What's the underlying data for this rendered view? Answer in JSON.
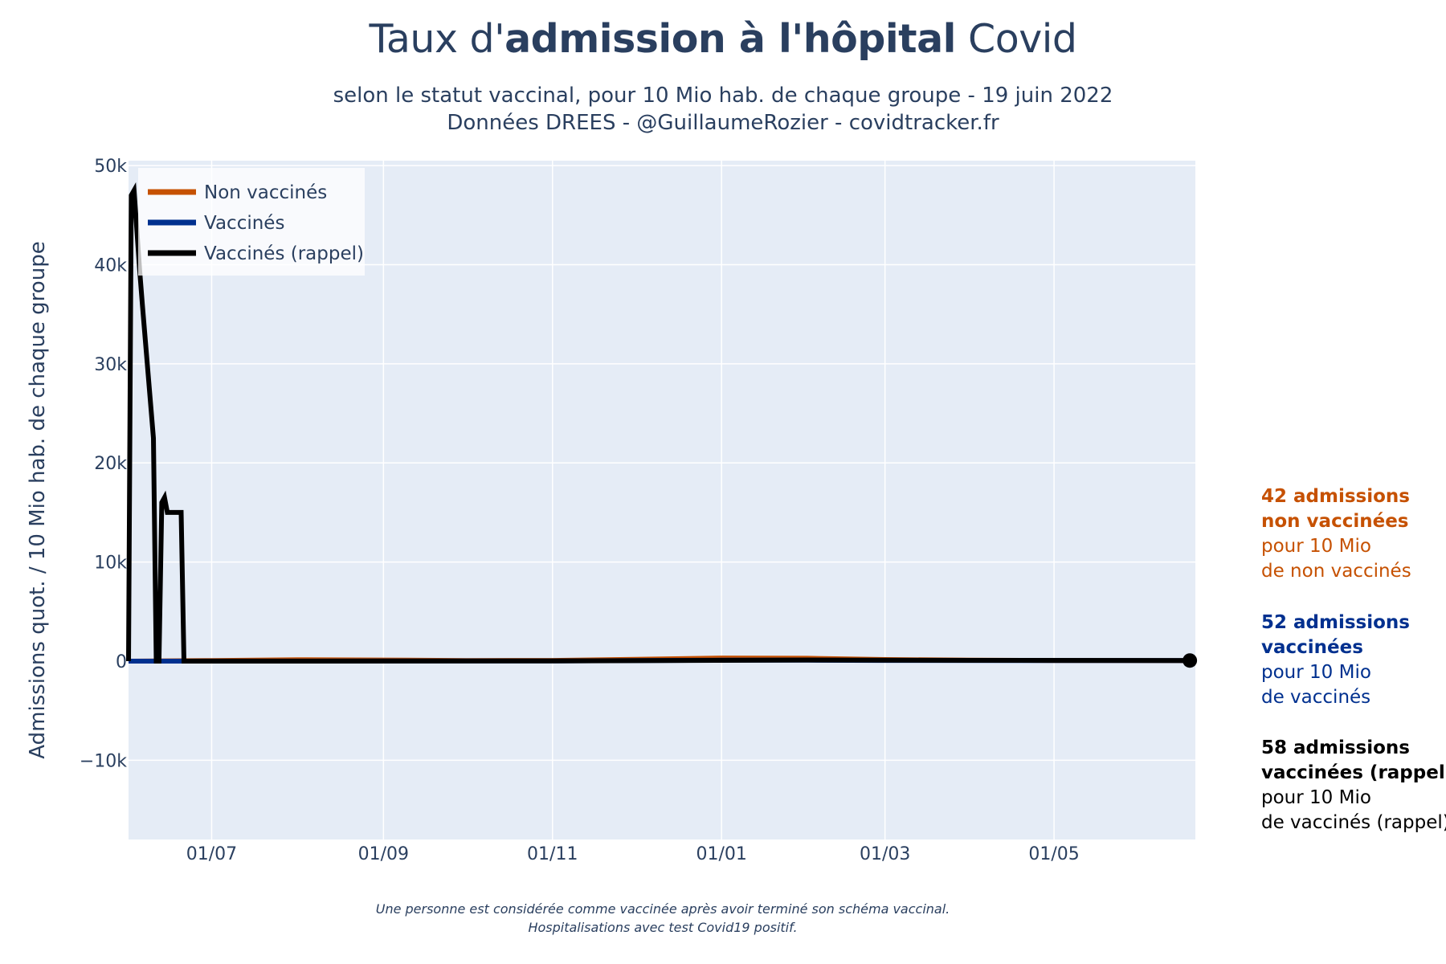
{
  "title": {
    "prefix": "Taux d'",
    "bold": "admission à l'hôpital",
    "suffix": " Covid"
  },
  "subtitle": {
    "line1": "selon le statut vaccinal, pour 10 Mio hab. de chaque groupe - 19 juin 2022",
    "line2": "Données DREES - @GuillaumeRozier - covidtracker.fr"
  },
  "footnote": {
    "line1": "Une personne est considérée comme vaccinée après avoir terminé son schéma vaccinal.",
    "line2": "Hospitalisations avec test Covid19 positif."
  },
  "annotations": [
    {
      "line1": "42 admissions",
      "line2": "non vaccinées",
      "line3": "pour 10 Mio",
      "line4": "de non vaccinés",
      "color": "#C65102"
    },
    {
      "line1": "52 admissions",
      "line2": "vaccinées",
      "line3": "pour 10 Mio",
      "line4": "de vaccinés",
      "color": "#00308F"
    },
    {
      "line1": "58 admissions",
      "line2": "vaccinées (rappel)",
      "line3": "pour 10 Mio",
      "line4": "de vaccinés (rappel)",
      "color": "#000000"
    }
  ],
  "chart_data": {
    "type": "line",
    "title": "",
    "xlabel": "",
    "ylabel": "Admissions quot. / 10 Mio hab. de chaque groupe",
    "x_axis": {
      "type": "date",
      "range": [
        "2021-06-01",
        "2022-06-21"
      ],
      "ticks": [
        {
          "date": "2021-07-01",
          "label": "01/07"
        },
        {
          "date": "2021-09-01",
          "label": "01/09"
        },
        {
          "date": "2021-11-01",
          "label": "01/11"
        },
        {
          "date": "2022-01-01",
          "label": "01/01"
        },
        {
          "date": "2022-03-01",
          "label": "01/03"
        },
        {
          "date": "2022-05-01",
          "label": "01/05"
        }
      ]
    },
    "y_axis": {
      "range": [
        -18000,
        50500
      ],
      "ticks": [
        {
          "value": -10000,
          "label": "−10k"
        },
        {
          "value": 0,
          "label": "0"
        },
        {
          "value": 10000,
          "label": "10k"
        },
        {
          "value": 20000,
          "label": "20k"
        },
        {
          "value": 30000,
          "label": "30k"
        },
        {
          "value": 40000,
          "label": "40k"
        },
        {
          "value": 50000,
          "label": "50k"
        }
      ]
    },
    "grid": true,
    "legend_position": "top-left",
    "series": [
      {
        "name": "Non vaccinés",
        "color": "#C65102",
        "points": [
          [
            "2021-06-01",
            0
          ],
          [
            "2021-07-01",
            60
          ],
          [
            "2021-08-01",
            140
          ],
          [
            "2021-09-01",
            110
          ],
          [
            "2021-10-01",
            60
          ],
          [
            "2021-11-01",
            70
          ],
          [
            "2021-12-01",
            180
          ],
          [
            "2022-01-01",
            310
          ],
          [
            "2022-02-01",
            290
          ],
          [
            "2022-03-01",
            160
          ],
          [
            "2022-04-01",
            90
          ],
          [
            "2022-05-01",
            60
          ],
          [
            "2022-06-19",
            42
          ]
        ]
      },
      {
        "name": "Vaccinés",
        "color": "#00308F",
        "points": [
          [
            "2021-06-01",
            0
          ],
          [
            "2021-06-18",
            0
          ],
          [
            "2021-07-01",
            5
          ],
          [
            "2021-09-01",
            15
          ],
          [
            "2021-11-01",
            20
          ],
          [
            "2022-01-01",
            90
          ],
          [
            "2022-02-01",
            95
          ],
          [
            "2022-03-01",
            70
          ],
          [
            "2022-05-01",
            50
          ],
          [
            "2022-06-19",
            52
          ]
        ]
      },
      {
        "name": "Vaccinés (rappel)",
        "color": "#000000",
        "points": [
          [
            "2021-06-01",
            0
          ],
          [
            "2021-06-02",
            47000
          ],
          [
            "2021-06-03",
            47500
          ],
          [
            "2021-06-05",
            39500
          ],
          [
            "2021-06-06",
            36000
          ],
          [
            "2021-06-10",
            22500
          ],
          [
            "2021-06-11",
            0
          ],
          [
            "2021-06-12",
            0
          ],
          [
            "2021-06-13",
            16000
          ],
          [
            "2021-06-14",
            16500
          ],
          [
            "2021-06-15",
            15000
          ],
          [
            "2021-06-20",
            15000
          ],
          [
            "2021-06-21",
            0
          ],
          [
            "2021-08-01",
            0
          ],
          [
            "2021-11-01",
            20
          ],
          [
            "2022-01-01",
            80
          ],
          [
            "2022-02-01",
            110
          ],
          [
            "2022-04-01",
            80
          ],
          [
            "2022-06-19",
            58
          ]
        ],
        "end_marker": true
      }
    ]
  }
}
